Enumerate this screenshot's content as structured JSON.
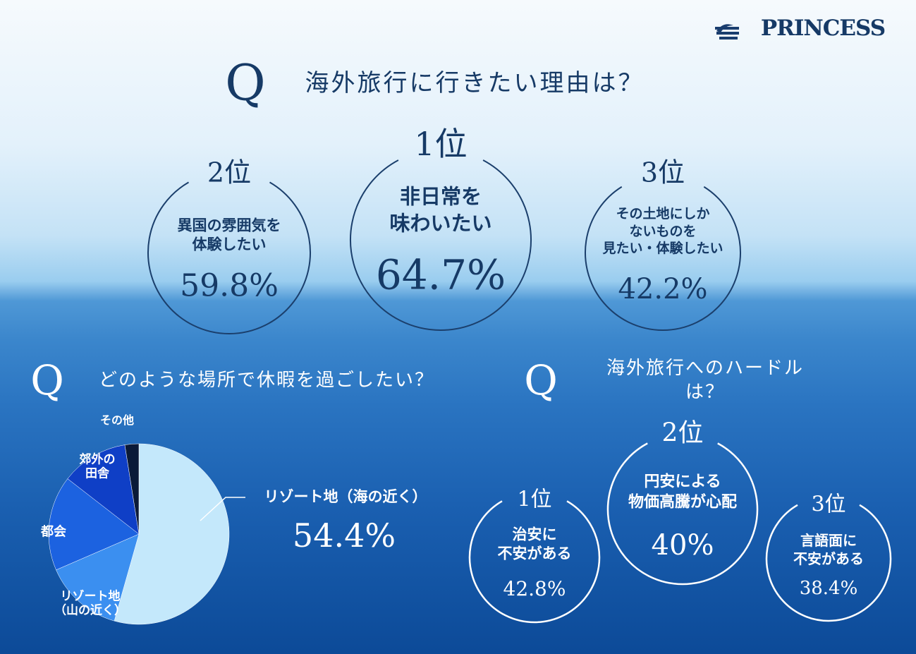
{
  "logo": "PRINCESS",
  "q_mark": "Q",
  "reasons": {
    "question": "海外旅行に行きたい理由は？",
    "items": [
      {
        "rank": "2位",
        "text": "異国の雰囲気を\n体験したい",
        "value": "59.8%"
      },
      {
        "rank": "1位",
        "text": "非日常を\n味わいたい",
        "value": "64.7%"
      },
      {
        "rank": "3位",
        "text": "その土地にしか\nないものを\n見たい・体験したい",
        "value": "42.2%"
      }
    ]
  },
  "chart_data": {
    "type": "pie",
    "title": "どのような場所で休暇を過ごしたい？",
    "categories": [
      "リゾート地（海の近く）",
      "リゾート地\n（山の近く）",
      "都会",
      "郊外の\n田舎",
      "その他"
    ],
    "values": [
      54.4,
      14.1,
      17,
      12,
      2.5
    ],
    "value_labels": [
      "54.4%",
      null,
      null,
      null,
      null
    ],
    "colors": [
      "#c4e8fb",
      "#3b8ff0",
      "#1c62e0",
      "#0f3fc6",
      "#0b1a38"
    ]
  },
  "hurdles": {
    "question": "海外旅行へのハードルは？",
    "items": [
      {
        "rank": "1位",
        "text": "治安に\n不安がある",
        "value": "42.8%"
      },
      {
        "rank": "2位",
        "text": "円安による\n物価高騰が心配",
        "value": "40%"
      },
      {
        "rank": "3位",
        "text": "言語面に\n不安がある",
        "value": "38.4%"
      }
    ]
  }
}
